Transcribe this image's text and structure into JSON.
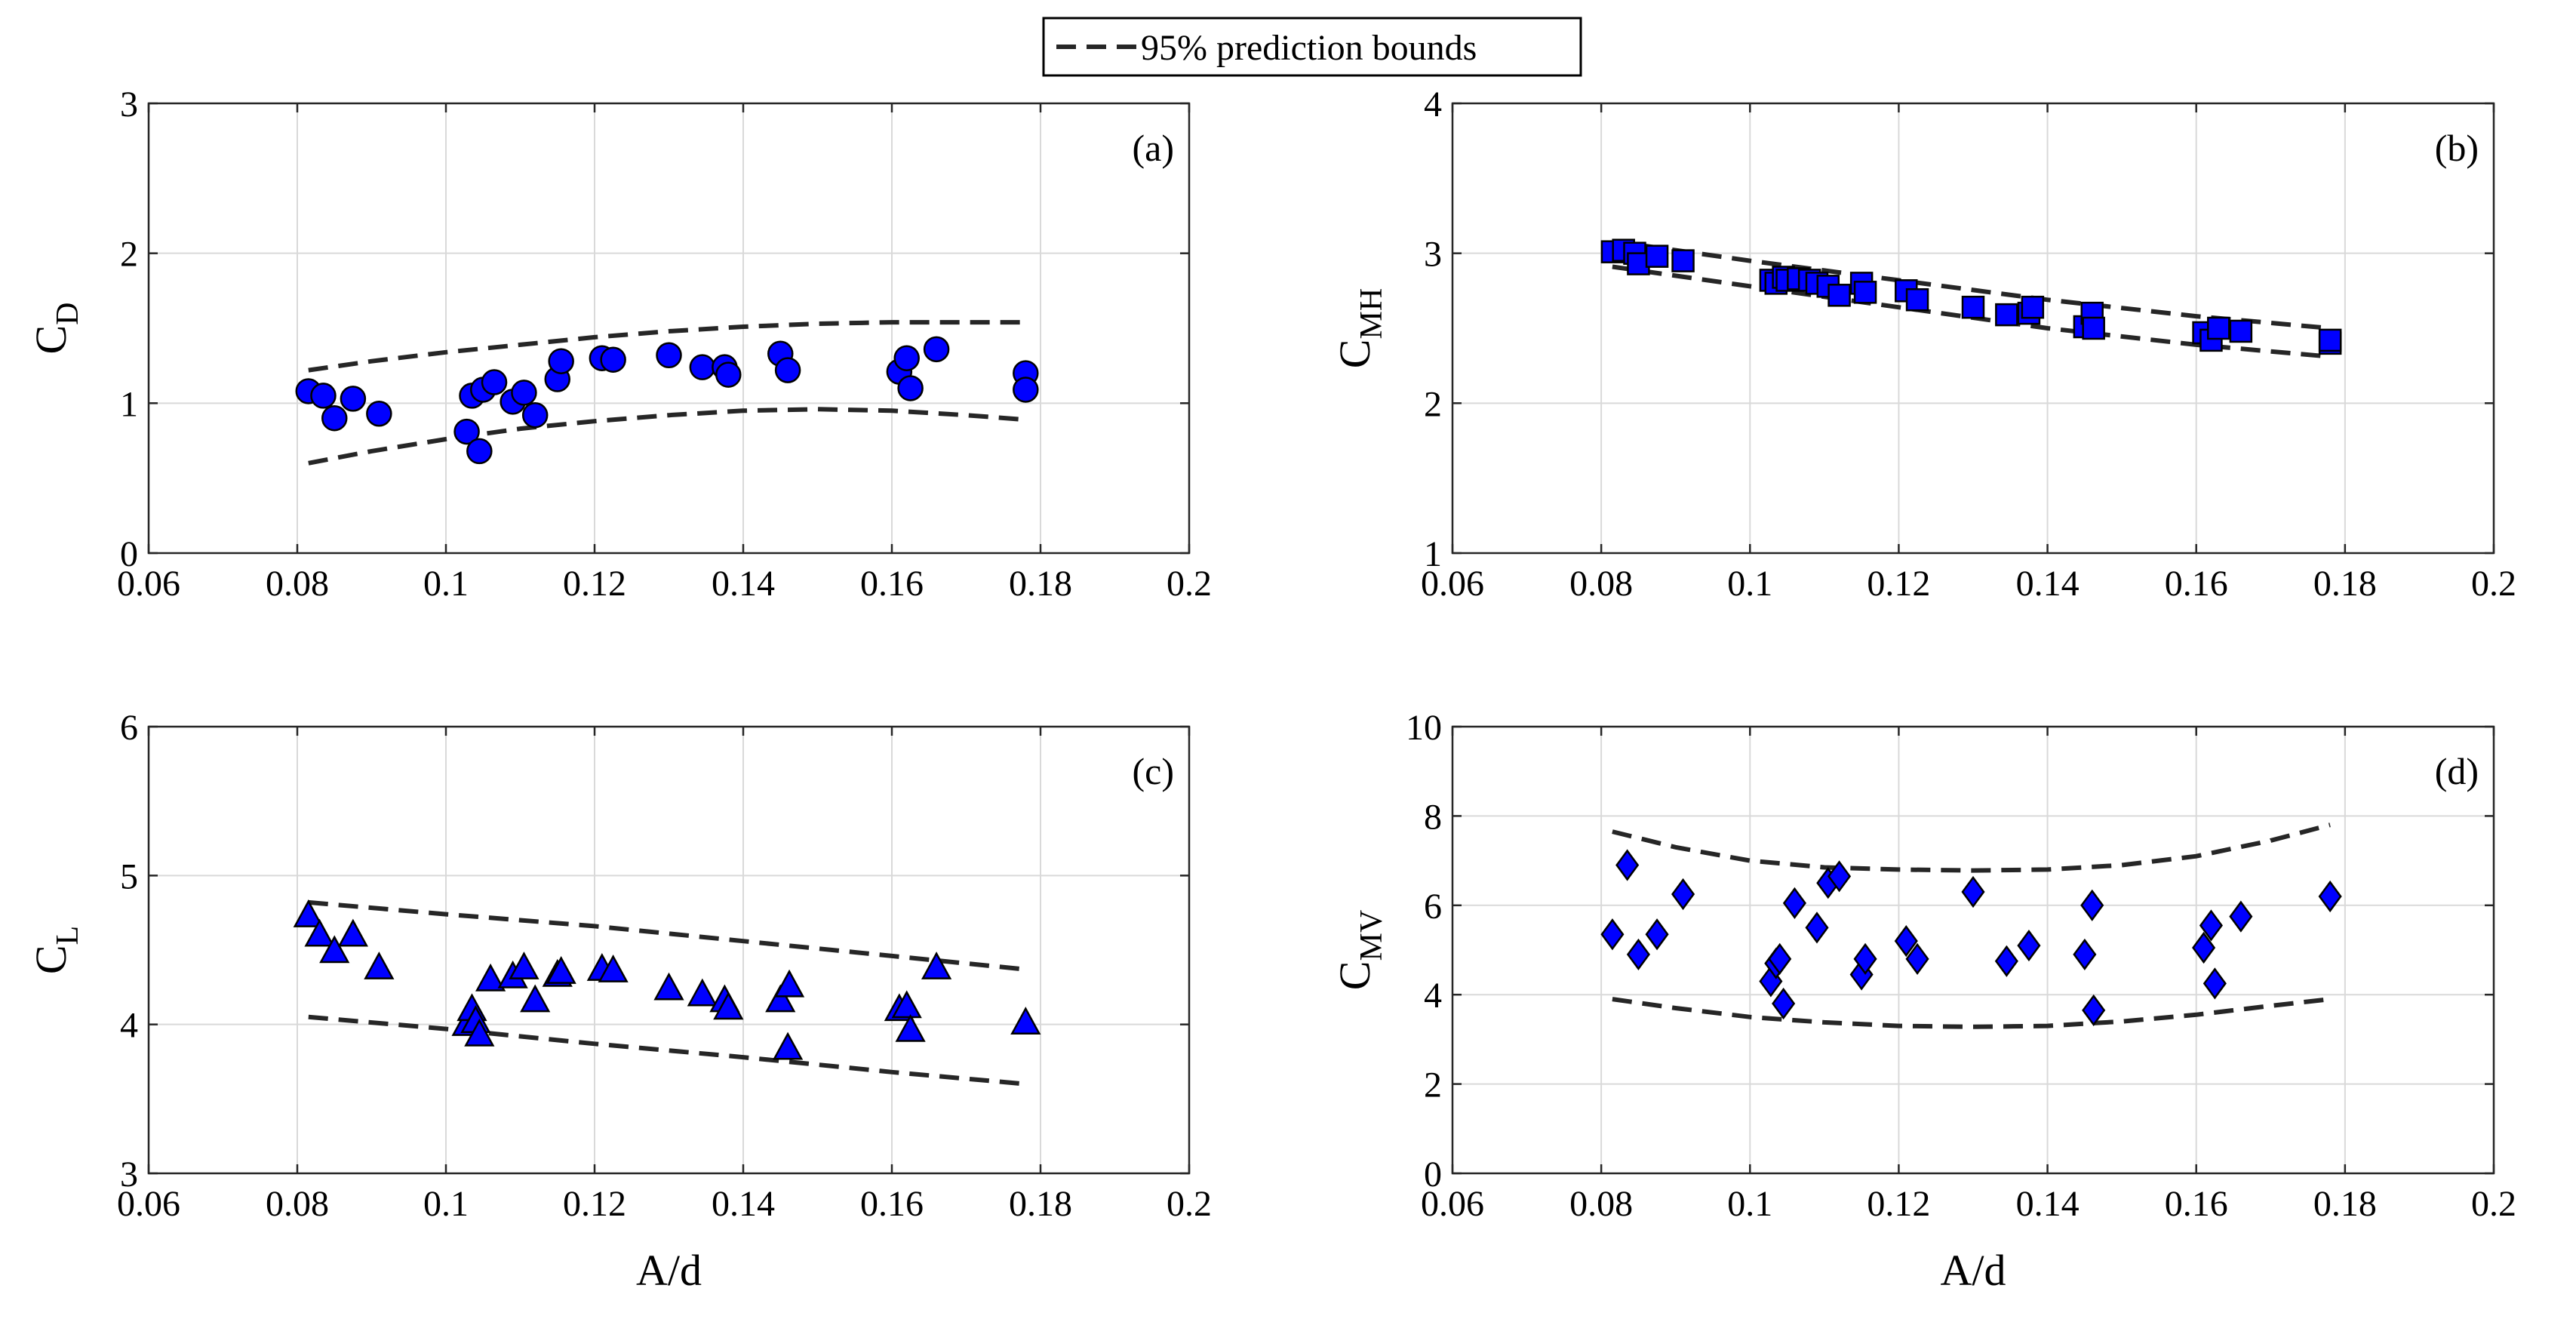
{
  "legend": {
    "label": "95% prediction bounds"
  },
  "colors": {
    "marker_fill": "#0000ff",
    "marker_edge": "#000000",
    "bounds": "#262626",
    "grid": "#d9d9d9"
  },
  "chart_data": [
    {
      "type": "scatter",
      "panel": "(a)",
      "marker": "circle",
      "xlabel": "A/d",
      "ylabel_main": "C",
      "ylabel_sub": "D",
      "xlim": [
        0.06,
        0.2
      ],
      "ylim": [
        0,
        3
      ],
      "xticks": [
        "0.06",
        "0.08",
        "0.1",
        "0.12",
        "0.14",
        "0.16",
        "0.18",
        "0.2"
      ],
      "yticks": [
        "0",
        "1",
        "2",
        "3"
      ],
      "show_xlabel": false,
      "points": [
        [
          0.0815,
          1.08
        ],
        [
          0.0835,
          1.05
        ],
        [
          0.085,
          0.9
        ],
        [
          0.0875,
          1.03
        ],
        [
          0.091,
          0.93
        ],
        [
          0.1028,
          0.81
        ],
        [
          0.1035,
          1.05
        ],
        [
          0.1045,
          0.68
        ],
        [
          0.105,
          1.09
        ],
        [
          0.1065,
          1.14
        ],
        [
          0.109,
          1.01
        ],
        [
          0.1105,
          1.07
        ],
        [
          0.112,
          0.92
        ],
        [
          0.115,
          1.16
        ],
        [
          0.1155,
          1.28
        ],
        [
          0.121,
          1.3
        ],
        [
          0.1225,
          1.29
        ],
        [
          0.13,
          1.32
        ],
        [
          0.1345,
          1.24
        ],
        [
          0.1375,
          1.24
        ],
        [
          0.138,
          1.19
        ],
        [
          0.145,
          1.33
        ],
        [
          0.146,
          1.22
        ],
        [
          0.161,
          1.21
        ],
        [
          0.162,
          1.3
        ],
        [
          0.1625,
          1.1
        ],
        [
          0.166,
          1.36
        ],
        [
          0.178,
          1.2
        ],
        [
          0.178,
          1.09
        ]
      ],
      "bounds_upper": [
        [
          0.0815,
          1.22
        ],
        [
          0.09,
          1.28
        ],
        [
          0.1,
          1.34
        ],
        [
          0.11,
          1.39
        ],
        [
          0.12,
          1.44
        ],
        [
          0.13,
          1.48
        ],
        [
          0.14,
          1.51
        ],
        [
          0.15,
          1.53
        ],
        [
          0.16,
          1.54
        ],
        [
          0.17,
          1.54
        ],
        [
          0.178,
          1.54
        ]
      ],
      "bounds_lower": [
        [
          0.0815,
          0.6
        ],
        [
          0.09,
          0.68
        ],
        [
          0.1,
          0.76
        ],
        [
          0.11,
          0.83
        ],
        [
          0.12,
          0.88
        ],
        [
          0.13,
          0.92
        ],
        [
          0.14,
          0.95
        ],
        [
          0.15,
          0.96
        ],
        [
          0.16,
          0.95
        ],
        [
          0.17,
          0.92
        ],
        [
          0.178,
          0.89
        ]
      ]
    },
    {
      "type": "scatter",
      "panel": "(b)",
      "marker": "square",
      "xlabel": "A/d",
      "ylabel_main": "C",
      "ylabel_sub": "MH",
      "xlim": [
        0.06,
        0.2
      ],
      "ylim": [
        1,
        4
      ],
      "xticks": [
        "0.06",
        "0.08",
        "0.1",
        "0.12",
        "0.14",
        "0.16",
        "0.18",
        "0.2"
      ],
      "yticks": [
        "1",
        "2",
        "3",
        "4"
      ],
      "show_xlabel": false,
      "points": [
        [
          0.0815,
          3.01
        ],
        [
          0.083,
          3.02
        ],
        [
          0.0845,
          3.0
        ],
        [
          0.085,
          2.93
        ],
        [
          0.0875,
          2.98
        ],
        [
          0.091,
          2.95
        ],
        [
          0.1028,
          2.82
        ],
        [
          0.1035,
          2.8
        ],
        [
          0.1045,
          2.84
        ],
        [
          0.105,
          2.82
        ],
        [
          0.1065,
          2.83
        ],
        [
          0.108,
          2.82
        ],
        [
          0.109,
          2.8
        ],
        [
          0.1105,
          2.78
        ],
        [
          0.112,
          2.72
        ],
        [
          0.115,
          2.8
        ],
        [
          0.1155,
          2.74
        ],
        [
          0.121,
          2.75
        ],
        [
          0.1225,
          2.69
        ],
        [
          0.13,
          2.64
        ],
        [
          0.1345,
          2.59
        ],
        [
          0.1375,
          2.6
        ],
        [
          0.138,
          2.64
        ],
        [
          0.145,
          2.51
        ],
        [
          0.146,
          2.6
        ],
        [
          0.1462,
          2.5
        ],
        [
          0.161,
          2.47
        ],
        [
          0.162,
          2.42
        ],
        [
          0.163,
          2.5
        ],
        [
          0.166,
          2.48
        ],
        [
          0.178,
          2.4
        ],
        [
          0.178,
          2.42
        ]
      ],
      "bounds_upper": [
        [
          0.0815,
          3.08
        ],
        [
          0.1,
          2.95
        ],
        [
          0.12,
          2.82
        ],
        [
          0.14,
          2.69
        ],
        [
          0.16,
          2.58
        ],
        [
          0.178,
          2.5
        ]
      ],
      "bounds_lower": [
        [
          0.0815,
          2.91
        ],
        [
          0.1,
          2.78
        ],
        [
          0.12,
          2.64
        ],
        [
          0.14,
          2.5
        ],
        [
          0.16,
          2.39
        ],
        [
          0.178,
          2.31
        ]
      ]
    },
    {
      "type": "scatter",
      "panel": "(c)",
      "marker": "triangle",
      "xlabel": "A/d",
      "ylabel_main": "C",
      "ylabel_sub": "L",
      "xlim": [
        0.06,
        0.2
      ],
      "ylim": [
        3,
        6
      ],
      "xticks": [
        "0.06",
        "0.08",
        "0.1",
        "0.12",
        "0.14",
        "0.16",
        "0.18",
        "0.2"
      ],
      "yticks": [
        "3",
        "4",
        "5",
        "6"
      ],
      "show_xlabel": true,
      "points": [
        [
          0.0815,
          4.73
        ],
        [
          0.083,
          4.6
        ],
        [
          0.085,
          4.49
        ],
        [
          0.0875,
          4.6
        ],
        [
          0.091,
          4.38
        ],
        [
          0.1028,
          4.0
        ],
        [
          0.1035,
          4.1
        ],
        [
          0.104,
          4.02
        ],
        [
          0.1045,
          3.93
        ],
        [
          0.106,
          4.3
        ],
        [
          0.109,
          4.32
        ],
        [
          0.1105,
          4.38
        ],
        [
          0.112,
          4.16
        ],
        [
          0.115,
          4.33
        ],
        [
          0.1155,
          4.35
        ],
        [
          0.121,
          4.37
        ],
        [
          0.1225,
          4.36
        ],
        [
          0.13,
          4.24
        ],
        [
          0.1345,
          4.2
        ],
        [
          0.1375,
          4.16
        ],
        [
          0.138,
          4.11
        ],
        [
          0.145,
          4.16
        ],
        [
          0.146,
          3.84
        ],
        [
          0.1462,
          4.26
        ],
        [
          0.161,
          4.1
        ],
        [
          0.162,
          4.12
        ],
        [
          0.1625,
          3.96
        ],
        [
          0.166,
          4.38
        ],
        [
          0.178,
          4.01
        ]
      ],
      "bounds_upper": [
        [
          0.0815,
          4.82
        ],
        [
          0.1,
          4.74
        ],
        [
          0.12,
          4.66
        ],
        [
          0.14,
          4.56
        ],
        [
          0.16,
          4.46
        ],
        [
          0.178,
          4.37
        ]
      ],
      "bounds_lower": [
        [
          0.0815,
          4.05
        ],
        [
          0.1,
          3.97
        ],
        [
          0.12,
          3.87
        ],
        [
          0.14,
          3.78
        ],
        [
          0.16,
          3.68
        ],
        [
          0.178,
          3.6
        ]
      ]
    },
    {
      "type": "scatter",
      "panel": "(d)",
      "marker": "diamond",
      "xlabel": "A/d",
      "ylabel_main": "C",
      "ylabel_sub": "MV",
      "xlim": [
        0.06,
        0.2
      ],
      "ylim": [
        0,
        10
      ],
      "xticks": [
        "0.06",
        "0.08",
        "0.1",
        "0.12",
        "0.14",
        "0.16",
        "0.18",
        "0.2"
      ],
      "yticks": [
        "0",
        "2",
        "4",
        "6",
        "8",
        "10"
      ],
      "show_xlabel": true,
      "points": [
        [
          0.0815,
          5.35
        ],
        [
          0.0835,
          6.9
        ],
        [
          0.085,
          4.9
        ],
        [
          0.0875,
          5.35
        ],
        [
          0.091,
          6.25
        ],
        [
          0.1028,
          4.3
        ],
        [
          0.1035,
          4.7
        ],
        [
          0.104,
          4.8
        ],
        [
          0.1045,
          3.8
        ],
        [
          0.106,
          6.05
        ],
        [
          0.109,
          5.5
        ],
        [
          0.1105,
          6.5
        ],
        [
          0.112,
          6.65
        ],
        [
          0.115,
          4.45
        ],
        [
          0.1155,
          4.8
        ],
        [
          0.121,
          5.2
        ],
        [
          0.1225,
          4.8
        ],
        [
          0.13,
          6.3
        ],
        [
          0.1345,
          4.75
        ],
        [
          0.1375,
          5.1
        ],
        [
          0.145,
          4.9
        ],
        [
          0.146,
          6.0
        ],
        [
          0.1462,
          3.65
        ],
        [
          0.161,
          5.05
        ],
        [
          0.162,
          5.55
        ],
        [
          0.1625,
          4.25
        ],
        [
          0.166,
          5.75
        ],
        [
          0.178,
          6.2
        ]
      ],
      "bounds_upper": [
        [
          0.0815,
          7.65
        ],
        [
          0.09,
          7.3
        ],
        [
          0.1,
          7.0
        ],
        [
          0.11,
          6.85
        ],
        [
          0.12,
          6.8
        ],
        [
          0.13,
          6.78
        ],
        [
          0.14,
          6.8
        ],
        [
          0.15,
          6.9
        ],
        [
          0.16,
          7.1
        ],
        [
          0.17,
          7.45
        ],
        [
          0.178,
          7.8
        ]
      ],
      "bounds_lower": [
        [
          0.0815,
          3.9
        ],
        [
          0.09,
          3.7
        ],
        [
          0.1,
          3.5
        ],
        [
          0.11,
          3.38
        ],
        [
          0.12,
          3.3
        ],
        [
          0.13,
          3.28
        ],
        [
          0.14,
          3.3
        ],
        [
          0.15,
          3.4
        ],
        [
          0.16,
          3.55
        ],
        [
          0.17,
          3.75
        ],
        [
          0.178,
          3.9
        ]
      ]
    }
  ]
}
